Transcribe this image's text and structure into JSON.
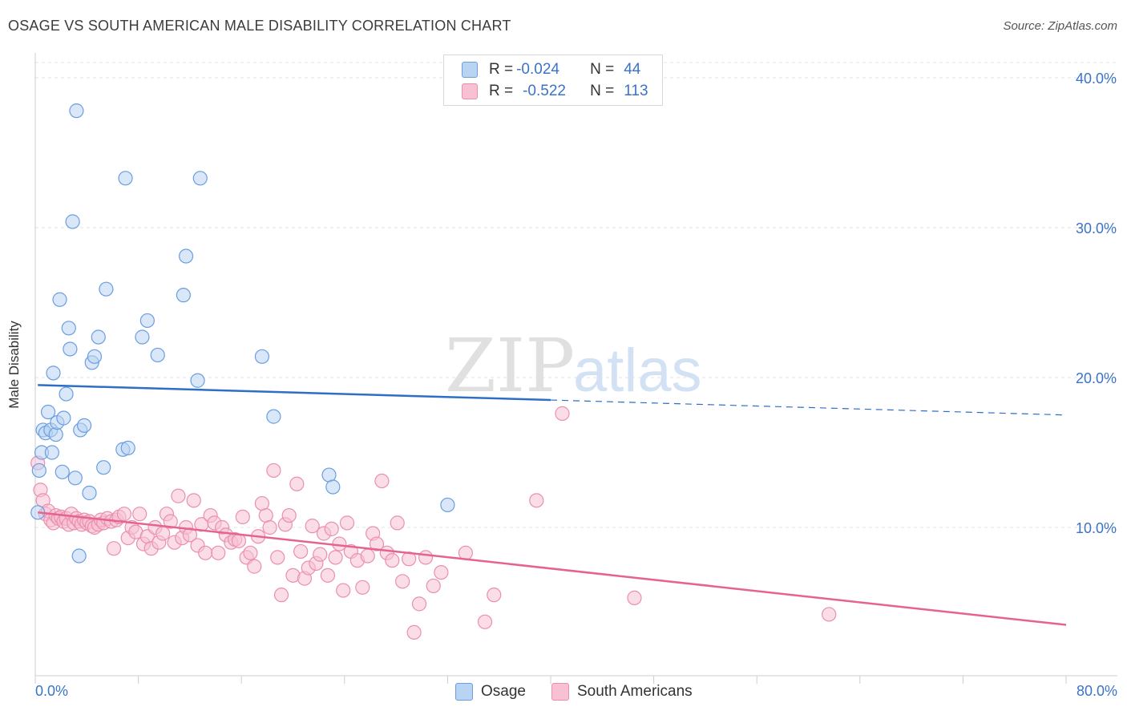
{
  "title": "OSAGE VS SOUTH AMERICAN MALE DISABILITY CORRELATION CHART",
  "source": "Source: ZipAtlas.com",
  "watermark": {
    "zip": "ZIP",
    "atlas": "atlas"
  },
  "legend": {
    "rows": [
      {
        "r_label": "R = ",
        "r_value": "-0.024",
        "n_label": "N = ",
        "n_value": "44"
      },
      {
        "r_label": "R = ",
        "r_value": "-0.522",
        "n_label": "N = ",
        "n_value": "113"
      }
    ]
  },
  "colors": {
    "osage_fill": "#b9d3f3",
    "osage_stroke": "#6a9ee0",
    "osage_line": "#2f6ec6",
    "sa_fill": "#f7c1d3",
    "sa_stroke": "#ea8fae",
    "sa_line": "#e4648f",
    "axis_label": "#3a73c8",
    "grid": "#e3e3e3"
  },
  "chart_data": {
    "type": "scatter",
    "title": "OSAGE VS SOUTH AMERICAN MALE DISABILITY CORRELATION CHART",
    "xlabel": "",
    "ylabel": "Male Disability",
    "xlim": [
      0,
      80
    ],
    "ylim": [
      0,
      40
    ],
    "x_tick_labels": [
      "0.0%",
      "80.0%"
    ],
    "y_ticks": [
      10,
      20,
      30,
      40
    ],
    "y_tick_labels": [
      "10.0%",
      "20.0%",
      "30.0%",
      "40.0%"
    ],
    "grid": true,
    "legend_position": "top-center",
    "series": [
      {
        "name": "Osage",
        "r": -0.024,
        "n": 44,
        "trend": {
          "x0": 0.2,
          "y0": 19.5,
          "x1": 40,
          "y1": 18.5,
          "dashed_to_x": 80,
          "dashed_to_y": 17.5
        },
        "points": [
          [
            0.2,
            11.0
          ],
          [
            0.3,
            13.8
          ],
          [
            0.5,
            15.0
          ],
          [
            0.6,
            16.5
          ],
          [
            0.8,
            16.3
          ],
          [
            1.0,
            17.7
          ],
          [
            1.2,
            16.5
          ],
          [
            1.3,
            15.0
          ],
          [
            1.4,
            20.3
          ],
          [
            1.6,
            16.2
          ],
          [
            1.7,
            17.0
          ],
          [
            1.9,
            25.2
          ],
          [
            2.1,
            13.7
          ],
          [
            2.2,
            17.3
          ],
          [
            2.4,
            18.9
          ],
          [
            2.6,
            23.3
          ],
          [
            2.7,
            21.9
          ],
          [
            2.9,
            30.4
          ],
          [
            3.1,
            13.3
          ],
          [
            3.2,
            37.8
          ],
          [
            3.4,
            8.1
          ],
          [
            3.5,
            16.5
          ],
          [
            3.8,
            16.8
          ],
          [
            4.2,
            12.3
          ],
          [
            4.4,
            21.0
          ],
          [
            4.6,
            21.4
          ],
          [
            4.9,
            22.7
          ],
          [
            5.3,
            14.0
          ],
          [
            5.5,
            25.9
          ],
          [
            6.8,
            15.2
          ],
          [
            7.0,
            33.3
          ],
          [
            7.2,
            15.3
          ],
          [
            8.3,
            22.7
          ],
          [
            8.7,
            23.8
          ],
          [
            9.5,
            21.5
          ],
          [
            11.5,
            25.5
          ],
          [
            11.7,
            28.1
          ],
          [
            12.6,
            19.8
          ],
          [
            12.8,
            33.3
          ],
          [
            17.6,
            21.4
          ],
          [
            18.5,
            17.4
          ],
          [
            22.8,
            13.5
          ],
          [
            23.1,
            12.7
          ],
          [
            32.0,
            11.5
          ]
        ]
      },
      {
        "name": "South Americans",
        "r": -0.522,
        "n": 113,
        "trend": {
          "x0": 0.2,
          "y0": 11.0,
          "x1": 80,
          "y1": 3.5
        },
        "points": [
          [
            0.2,
            14.3
          ],
          [
            0.4,
            12.5
          ],
          [
            0.6,
            11.8
          ],
          [
            0.8,
            10.9
          ],
          [
            1.0,
            11.1
          ],
          [
            1.2,
            10.5
          ],
          [
            1.4,
            10.3
          ],
          [
            1.6,
            10.8
          ],
          [
            1.8,
            10.6
          ],
          [
            2.0,
            10.7
          ],
          [
            2.2,
            10.4
          ],
          [
            2.4,
            10.6
          ],
          [
            2.6,
            10.2
          ],
          [
            2.8,
            10.9
          ],
          [
            3.0,
            10.3
          ],
          [
            3.2,
            10.6
          ],
          [
            3.4,
            10.4
          ],
          [
            3.6,
            10.2
          ],
          [
            3.8,
            10.5
          ],
          [
            4.0,
            10.3
          ],
          [
            4.2,
            10.4
          ],
          [
            4.4,
            10.1
          ],
          [
            4.6,
            10.0
          ],
          [
            4.9,
            10.2
          ],
          [
            5.1,
            10.5
          ],
          [
            5.3,
            10.3
          ],
          [
            5.6,
            10.6
          ],
          [
            5.9,
            10.4
          ],
          [
            6.1,
            8.6
          ],
          [
            6.3,
            10.5
          ],
          [
            6.5,
            10.7
          ],
          [
            6.9,
            10.9
          ],
          [
            7.2,
            9.3
          ],
          [
            7.5,
            10.0
          ],
          [
            7.8,
            9.7
          ],
          [
            8.1,
            10.9
          ],
          [
            8.4,
            8.9
          ],
          [
            8.7,
            9.4
          ],
          [
            9.0,
            8.6
          ],
          [
            9.3,
            10.0
          ],
          [
            9.6,
            9.0
          ],
          [
            9.9,
            9.6
          ],
          [
            10.2,
            10.9
          ],
          [
            10.5,
            10.4
          ],
          [
            10.8,
            9.0
          ],
          [
            11.1,
            12.1
          ],
          [
            11.4,
            9.3
          ],
          [
            11.7,
            10.0
          ],
          [
            12.0,
            9.5
          ],
          [
            12.3,
            11.8
          ],
          [
            12.6,
            8.8
          ],
          [
            12.9,
            10.2
          ],
          [
            13.2,
            8.3
          ],
          [
            13.6,
            10.8
          ],
          [
            13.9,
            10.3
          ],
          [
            14.2,
            8.3
          ],
          [
            14.5,
            10.0
          ],
          [
            14.8,
            9.5
          ],
          [
            15.2,
            9.0
          ],
          [
            15.5,
            9.2
          ],
          [
            15.8,
            9.1
          ],
          [
            16.1,
            10.7
          ],
          [
            16.4,
            8.0
          ],
          [
            16.7,
            8.3
          ],
          [
            17.0,
            7.4
          ],
          [
            17.3,
            9.4
          ],
          [
            17.6,
            11.6
          ],
          [
            17.9,
            10.8
          ],
          [
            18.2,
            10.0
          ],
          [
            18.5,
            13.8
          ],
          [
            18.8,
            8.0
          ],
          [
            19.1,
            5.5
          ],
          [
            19.4,
            10.2
          ],
          [
            19.7,
            10.8
          ],
          [
            20.0,
            6.8
          ],
          [
            20.3,
            12.9
          ],
          [
            20.6,
            8.4
          ],
          [
            20.9,
            6.6
          ],
          [
            21.2,
            7.3
          ],
          [
            21.5,
            10.1
          ],
          [
            21.8,
            7.6
          ],
          [
            22.1,
            8.2
          ],
          [
            22.4,
            9.6
          ],
          [
            22.7,
            6.8
          ],
          [
            23.0,
            9.9
          ],
          [
            23.3,
            8.0
          ],
          [
            23.6,
            8.9
          ],
          [
            23.9,
            5.8
          ],
          [
            24.2,
            10.3
          ],
          [
            24.5,
            8.4
          ],
          [
            25.0,
            7.8
          ],
          [
            25.4,
            6.0
          ],
          [
            25.8,
            8.1
          ],
          [
            26.2,
            9.6
          ],
          [
            26.5,
            8.9
          ],
          [
            26.9,
            13.1
          ],
          [
            27.3,
            8.3
          ],
          [
            27.7,
            7.8
          ],
          [
            28.1,
            10.3
          ],
          [
            28.5,
            6.4
          ],
          [
            29.0,
            7.9
          ],
          [
            29.4,
            3.0
          ],
          [
            29.8,
            4.9
          ],
          [
            30.3,
            8.0
          ],
          [
            30.9,
            6.1
          ],
          [
            31.5,
            7.0
          ],
          [
            33.4,
            8.3
          ],
          [
            34.9,
            3.7
          ],
          [
            35.6,
            5.5
          ],
          [
            38.9,
            11.8
          ],
          [
            40.9,
            17.6
          ],
          [
            46.5,
            5.3
          ],
          [
            61.6,
            4.2
          ]
        ]
      }
    ]
  }
}
